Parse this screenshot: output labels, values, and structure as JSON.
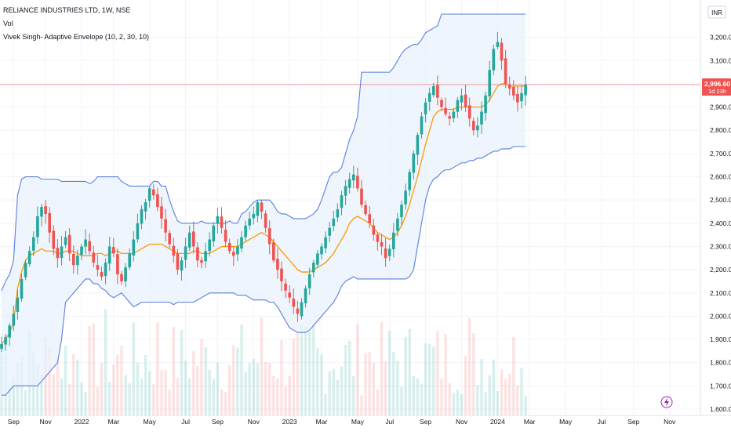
{
  "legend": {
    "symbol": "RELIANCE INDUSTRIES LTD, 1W, NSE",
    "vol": "Vol",
    "indicator": "Vivek Singh- Adaptive Envelope (10, 2, 30, 10)"
  },
  "currency": "INR",
  "price_tag": {
    "price": "2,996.60",
    "countdown": "1d 23h"
  },
  "colors": {
    "up": "#26a69a",
    "down": "#ef5350",
    "band": "#5b7fde",
    "band_fill": "#e8f2fb",
    "mid": "#ff9800",
    "price_line": "#ef5350"
  },
  "chart_data": {
    "type": "candlestick",
    "ylim": [
      1600,
      3300
    ],
    "y_ticks": [
      {
        "v": 3200,
        "t": "3,200.00"
      },
      {
        "v": 3100,
        "t": "3,100.00"
      },
      {
        "v": 3000,
        "t": "3,000.00"
      },
      {
        "v": 2900,
        "t": "2,900.00"
      },
      {
        "v": 2800,
        "t": "2,800.00"
      },
      {
        "v": 2700,
        "t": "2,700.00"
      },
      {
        "v": 2600,
        "t": "2,600.00"
      },
      {
        "v": 2500,
        "t": "2,500.00"
      },
      {
        "v": 2400,
        "t": "2,400.00"
      },
      {
        "v": 2300,
        "t": "2,300.00"
      },
      {
        "v": 2200,
        "t": "2,200.00"
      },
      {
        "v": 2100,
        "t": "2,100.00"
      },
      {
        "v": 2000,
        "t": "2,000.00"
      },
      {
        "v": 1900,
        "t": "1,900.00"
      },
      {
        "v": 1800,
        "t": "1,800.00"
      },
      {
        "v": 1700,
        "t": "1,700.00"
      },
      {
        "v": 1600,
        "t": "1,600.00"
      }
    ],
    "x_ticks": [
      {
        "i": 3,
        "t": "Sep"
      },
      {
        "i": 11,
        "t": "Nov"
      },
      {
        "i": 20,
        "t": "2022"
      },
      {
        "i": 28,
        "t": "Mar"
      },
      {
        "i": 37,
        "t": "May"
      },
      {
        "i": 46,
        "t": "Jul"
      },
      {
        "i": 54,
        "t": "Sep"
      },
      {
        "i": 63,
        "t": "Nov"
      },
      {
        "i": 72,
        "t": "2023"
      },
      {
        "i": 80,
        "t": "Mar"
      },
      {
        "i": 89,
        "t": "May"
      },
      {
        "i": 97,
        "t": "Jul"
      },
      {
        "i": 106,
        "t": "Sep"
      },
      {
        "i": 115,
        "t": "Nov"
      },
      {
        "i": 124,
        "t": "2024"
      },
      {
        "i": 132,
        "t": "Mar"
      },
      {
        "i": 141,
        "t": "May"
      },
      {
        "i": 150,
        "t": "Jul"
      },
      {
        "i": 158,
        "t": "Sep"
      },
      {
        "i": 167,
        "t": "Nov"
      }
    ],
    "last_close": 2996.6,
    "closes": [
      1880,
      1910,
      1960,
      2010,
      2080,
      2160,
      2230,
      2280,
      2340,
      2430,
      2470,
      2440,
      2360,
      2290,
      2250,
      2300,
      2340,
      2270,
      2220,
      2260,
      2300,
      2330,
      2280,
      2230,
      2200,
      2170,
      2230,
      2300,
      2270,
      2180,
      2150,
      2210,
      2270,
      2330,
      2400,
      2460,
      2490,
      2550,
      2520,
      2470,
      2420,
      2360,
      2310,
      2260,
      2200,
      2240,
      2300,
      2360,
      2300,
      2240,
      2230,
      2280,
      2330,
      2390,
      2430,
      2380,
      2320,
      2280,
      2260,
      2300,
      2340,
      2390,
      2420,
      2440,
      2490,
      2450,
      2380,
      2310,
      2240,
      2200,
      2150,
      2110,
      2080,
      2040,
      2010,
      2060,
      2120,
      2180,
      2230,
      2270,
      2300,
      2340,
      2380,
      2420,
      2460,
      2520,
      2560,
      2590,
      2610,
      2550,
      2480,
      2440,
      2400,
      2350,
      2320,
      2300,
      2250,
      2290,
      2360,
      2420,
      2480,
      2540,
      2620,
      2700,
      2780,
      2860,
      2920,
      2960,
      2990,
      2940,
      2900,
      2870,
      2850,
      2880,
      2930,
      2950,
      2900,
      2850,
      2800,
      2820,
      2880,
      2950,
      3060,
      3150,
      3180,
      3100,
      3000,
      2980,
      2950,
      2920,
      2960,
      2997
    ],
    "bands": {
      "upper": [
        2110,
        2150,
        2180,
        2240,
        2520,
        2590,
        2600,
        2600,
        2600,
        2600,
        2590,
        2590,
        2590,
        2590,
        2590,
        2580,
        2580,
        2580,
        2580,
        2580,
        2580,
        2580,
        2570,
        2580,
        2600,
        2600,
        2600,
        2600,
        2600,
        2600,
        2580,
        2570,
        2560,
        2560,
        2560,
        2560,
        2560,
        2560,
        2580,
        2580,
        2560,
        2560,
        2500,
        2450,
        2410,
        2400,
        2400,
        2400,
        2400,
        2400,
        2410,
        2400,
        2400,
        2400,
        2400,
        2400,
        2400,
        2410,
        2400,
        2400,
        2440,
        2450,
        2470,
        2490,
        2500,
        2500,
        2500,
        2500,
        2480,
        2450,
        2440,
        2440,
        2430,
        2420,
        2420,
        2420,
        2420,
        2430,
        2440,
        2460,
        2500,
        2550,
        2600,
        2620,
        2620,
        2640,
        2700,
        2760,
        2800,
        2860,
        3050,
        3050,
        3050,
        3050,
        3050,
        3050,
        3050,
        3050,
        3070,
        3100,
        3130,
        3150,
        3160,
        3170,
        3170,
        3190,
        3220,
        3230,
        3240,
        3250,
        3300,
        3300,
        3300,
        3300,
        3300,
        3300,
        3300,
        3300,
        3300,
        3300,
        3300,
        3300,
        3300,
        3300,
        3300,
        3300,
        3300,
        3300,
        3300,
        3300,
        3300,
        3300
      ],
      "mid": [
        1880,
        1900,
        1930,
        1970,
        2120,
        2190,
        2240,
        2260,
        2270,
        2280,
        2290,
        2280,
        2280,
        2280,
        2270,
        2270,
        2280,
        2280,
        2280,
        2270,
        2260,
        2260,
        2260,
        2260,
        2270,
        2270,
        2260,
        2270,
        2280,
        2280,
        2270,
        2270,
        2270,
        2270,
        2280,
        2290,
        2300,
        2310,
        2310,
        2310,
        2310,
        2300,
        2290,
        2280,
        2270,
        2270,
        2270,
        2270,
        2280,
        2280,
        2270,
        2270,
        2270,
        2280,
        2290,
        2300,
        2300,
        2300,
        2300,
        2300,
        2310,
        2320,
        2330,
        2340,
        2350,
        2360,
        2350,
        2340,
        2320,
        2300,
        2280,
        2260,
        2240,
        2220,
        2200,
        2190,
        2190,
        2190,
        2200,
        2210,
        2220,
        2230,
        2250,
        2270,
        2300,
        2330,
        2360,
        2400,
        2420,
        2430,
        2420,
        2410,
        2400,
        2380,
        2360,
        2350,
        2340,
        2330,
        2340,
        2360,
        2390,
        2430,
        2480,
        2540,
        2600,
        2670,
        2740,
        2800,
        2860,
        2880,
        2890,
        2890,
        2890,
        2890,
        2900,
        2900,
        2900,
        2900,
        2900,
        2900,
        2900,
        2910,
        2930,
        2960,
        2990,
        3000,
        3000,
        2990,
        2990,
        2990,
        2990,
        2990
      ],
      "lower": [
        1660,
        1660,
        1680,
        1700,
        1700,
        1700,
        1700,
        1700,
        1700,
        1700,
        1720,
        1740,
        1760,
        1780,
        1800,
        1900,
        2060,
        2080,
        2100,
        2120,
        2140,
        2160,
        2160,
        2140,
        2140,
        2120,
        2110,
        2090,
        2080,
        2090,
        2100,
        2080,
        2060,
        2040,
        2050,
        2060,
        2060,
        2060,
        2060,
        2060,
        2060,
        2060,
        2060,
        2050,
        2060,
        2060,
        2060,
        2060,
        2060,
        2070,
        2080,
        2090,
        2100,
        2100,
        2100,
        2100,
        2100,
        2100,
        2100,
        2090,
        2090,
        2090,
        2080,
        2070,
        2070,
        2070,
        2070,
        2060,
        2060,
        2040,
        2010,
        1980,
        1950,
        1940,
        1930,
        1930,
        1930,
        1940,
        1960,
        1980,
        2000,
        2020,
        2040,
        2060,
        2090,
        2130,
        2150,
        2160,
        2170,
        2160,
        2160,
        2160,
        2160,
        2160,
        2160,
        2160,
        2160,
        2160,
        2160,
        2160,
        2160,
        2160,
        2170,
        2200,
        2300,
        2400,
        2500,
        2560,
        2590,
        2600,
        2620,
        2630,
        2630,
        2640,
        2650,
        2660,
        2660,
        2670,
        2670,
        2680,
        2680,
        2690,
        2700,
        2710,
        2710,
        2720,
        2720,
        2720,
        2730,
        2730,
        2730,
        2730
      ]
    }
  }
}
